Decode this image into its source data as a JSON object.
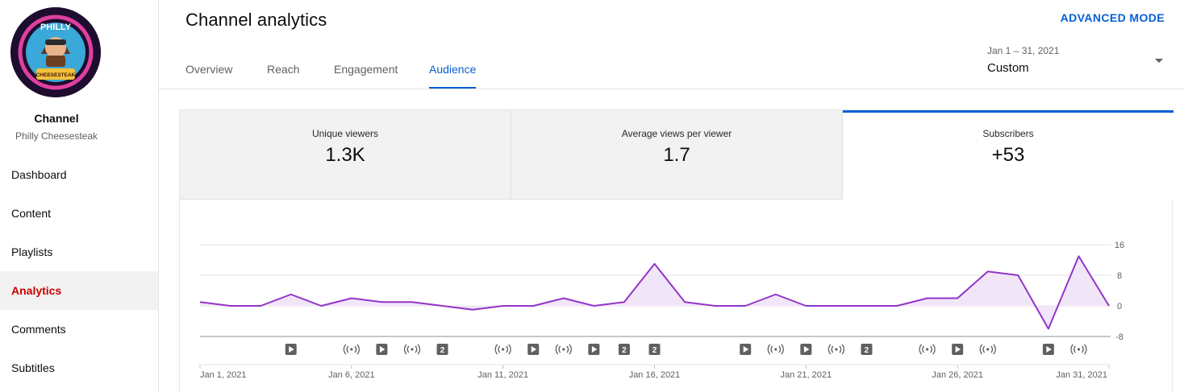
{
  "sidebar": {
    "avatar_text": {
      "top": "PHILLY",
      "bottom": "CHEESESTEAK"
    },
    "channel_label": "Channel",
    "channel_name": "Philly Cheesesteak",
    "items": [
      {
        "label": "Dashboard",
        "icon": "dashboard-icon"
      },
      {
        "label": "Content",
        "icon": "content-icon"
      },
      {
        "label": "Playlists",
        "icon": "playlists-icon"
      },
      {
        "label": "Analytics",
        "icon": "analytics-icon",
        "active": true
      },
      {
        "label": "Comments",
        "icon": "comments-icon"
      },
      {
        "label": "Subtitles",
        "icon": "subtitles-icon"
      }
    ]
  },
  "header": {
    "title": "Channel analytics",
    "advanced_mode": "ADVANCED MODE",
    "tabs": [
      "Overview",
      "Reach",
      "Engagement",
      "Audience"
    ],
    "active_tab": "Audience",
    "date_range": "Jan 1 – 31, 2021",
    "date_preset": "Custom"
  },
  "metrics": [
    {
      "label": "Unique viewers",
      "value": "1.3K"
    },
    {
      "label": "Average views per viewer",
      "value": "1.7"
    },
    {
      "label": "Subscribers",
      "value": "+53",
      "selected": true
    }
  ],
  "colors": {
    "accent": "#065fd4",
    "active_nav": "#cc0000",
    "series_line": "#9334c8",
    "series_fill": "#f1e6f8"
  },
  "chart_data": {
    "type": "area",
    "x": [
      "Jan 1",
      "Jan 2",
      "Jan 3",
      "Jan 4",
      "Jan 5",
      "Jan 6",
      "Jan 7",
      "Jan 8",
      "Jan 9",
      "Jan 10",
      "Jan 11",
      "Jan 12",
      "Jan 13",
      "Jan 14",
      "Jan 15",
      "Jan 16",
      "Jan 17",
      "Jan 18",
      "Jan 19",
      "Jan 20",
      "Jan 21",
      "Jan 22",
      "Jan 23",
      "Jan 24",
      "Jan 25",
      "Jan 26",
      "Jan 27",
      "Jan 28",
      "Jan 29",
      "Jan 30",
      "Jan 31"
    ],
    "series": [
      {
        "values": [
          1,
          0,
          0,
          3,
          0,
          2,
          1,
          1,
          0,
          -1,
          0,
          0,
          2,
          0,
          1,
          11,
          1,
          0,
          0,
          3,
          0,
          0,
          0,
          0,
          2,
          2,
          9,
          8,
          -6,
          13,
          0
        ]
      }
    ],
    "x_tick_labels": [
      "Jan 1, 2021",
      "Jan 6, 2021",
      "Jan 11, 2021",
      "Jan 16, 2021",
      "Jan 21, 2021",
      "Jan 26, 2021",
      "Jan 31, 2021"
    ],
    "x_tick_indices": [
      0,
      5,
      10,
      15,
      20,
      25,
      30
    ],
    "y_ticks": [
      16,
      8,
      0,
      -8
    ],
    "ylim": [
      -8,
      16
    ],
    "grid": true,
    "y_axis_position": "right",
    "markers": [
      {
        "day": 4,
        "kind": "video"
      },
      {
        "day": 6,
        "kind": "live"
      },
      {
        "day": 7,
        "kind": "video"
      },
      {
        "day": 8,
        "kind": "live"
      },
      {
        "day": 9,
        "kind": "count",
        "label": "2"
      },
      {
        "day": 11,
        "kind": "live"
      },
      {
        "day": 12,
        "kind": "video"
      },
      {
        "day": 13,
        "kind": "live"
      },
      {
        "day": 14,
        "kind": "video"
      },
      {
        "day": 15,
        "kind": "count",
        "label": "2"
      },
      {
        "day": 16,
        "kind": "count",
        "label": "2"
      },
      {
        "day": 19,
        "kind": "video"
      },
      {
        "day": 20,
        "kind": "live"
      },
      {
        "day": 21,
        "kind": "video"
      },
      {
        "day": 22,
        "kind": "live"
      },
      {
        "day": 23,
        "kind": "count",
        "label": "2"
      },
      {
        "day": 25,
        "kind": "live"
      },
      {
        "day": 26,
        "kind": "video"
      },
      {
        "day": 27,
        "kind": "live"
      },
      {
        "day": 29,
        "kind": "video"
      },
      {
        "day": 30,
        "kind": "live"
      }
    ]
  }
}
